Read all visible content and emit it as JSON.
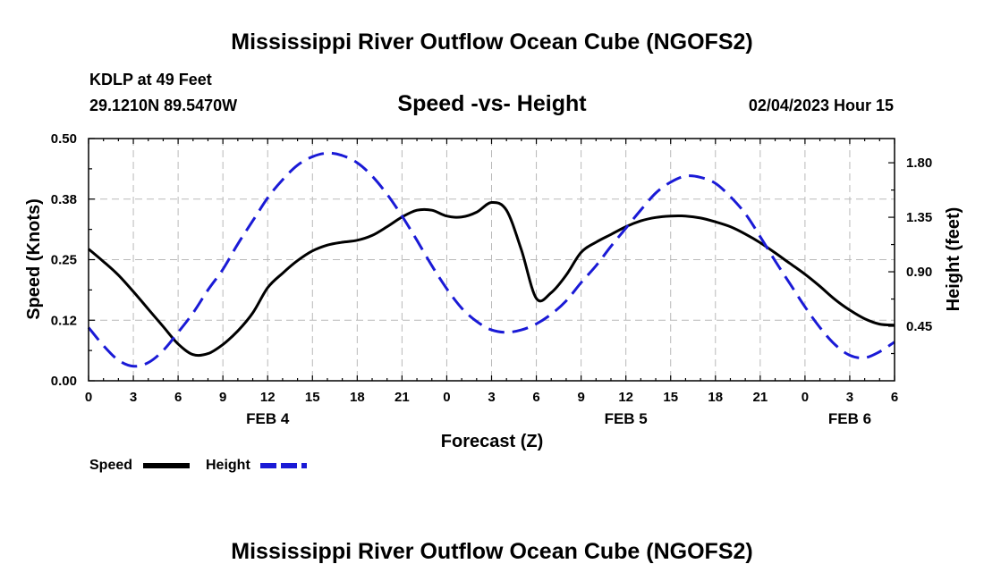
{
  "chart_data": {
    "type": "line",
    "title": "Mississippi River Outflow Ocean Cube (NGOFS2)",
    "footer_title": "Mississippi River Outflow Ocean Cube (NGOFS2)",
    "subtitle": "Speed -vs- Height",
    "station": "KDLP at 49 Feet",
    "location": "29.1210N  89.5470W",
    "datetime": "02/04/2023 Hour 15",
    "xlabel": "Forecast (Z)",
    "ylabel_left": "Speed (Knots)",
    "ylabel_right": "Height (feet)",
    "xlim": [
      0,
      54
    ],
    "ylim_left": [
      0,
      0.5
    ],
    "ylim_right": [
      0,
      2.0
    ],
    "x_ticks": [
      0,
      3,
      6,
      9,
      12,
      15,
      18,
      21,
      24,
      27,
      30,
      33,
      36,
      39,
      42,
      45,
      48,
      51,
      54
    ],
    "x_tick_labels": [
      "0",
      "3",
      "6",
      "9",
      "12",
      "15",
      "18",
      "21",
      "0",
      "3",
      "6",
      "9",
      "12",
      "15",
      "18",
      "21",
      "0",
      "3",
      "6"
    ],
    "y_ticks_left": [
      0.0,
      0.125,
      0.25,
      0.375,
      0.5
    ],
    "y_tick_labels_left": [
      "0.00",
      "0.12",
      "0.25",
      "0.38",
      "0.50"
    ],
    "y_ticks_right": [
      0.45,
      0.9,
      1.35,
      1.8
    ],
    "y_tick_labels_right": [
      "0.45",
      "0.90",
      "1.35",
      "1.80"
    ],
    "date_labels": [
      {
        "x": 12,
        "label": "FEB 4"
      },
      {
        "x": 36,
        "label": "FEB 5"
      },
      {
        "x": 51,
        "label": "FEB 6"
      }
    ],
    "series": [
      {
        "name": "Speed",
        "axis": "left",
        "color": "#000000",
        "style": "solid",
        "x": [
          0,
          1,
          2,
          3,
          4,
          5,
          6,
          7,
          8,
          9,
          10,
          11,
          12,
          13,
          14,
          15,
          16,
          17,
          18,
          19,
          20,
          21,
          22,
          23,
          24,
          25,
          26,
          27,
          28,
          29,
          30,
          31,
          32,
          33,
          34,
          35,
          36,
          37,
          38,
          39,
          40,
          41,
          42,
          43,
          44,
          45,
          46,
          47,
          48,
          49,
          50,
          51,
          52,
          53,
          54
        ],
        "values": [
          0.272,
          0.246,
          0.218,
          0.184,
          0.148,
          0.112,
          0.076,
          0.054,
          0.056,
          0.075,
          0.103,
          0.14,
          0.192,
          0.222,
          0.248,
          0.268,
          0.28,
          0.286,
          0.29,
          0.3,
          0.318,
          0.338,
          0.352,
          0.352,
          0.34,
          0.338,
          0.348,
          0.368,
          0.352,
          0.27,
          0.17,
          0.182,
          0.218,
          0.265,
          0.286,
          0.302,
          0.318,
          0.33,
          0.337,
          0.34,
          0.34,
          0.336,
          0.328,
          0.318,
          0.303,
          0.285,
          0.264,
          0.242,
          0.22,
          0.195,
          0.168,
          0.146,
          0.128,
          0.117,
          0.115
        ]
      },
      {
        "name": "Height",
        "axis": "right",
        "color": "#1a1ad6",
        "style": "dashed",
        "x": [
          0,
          1,
          2,
          3,
          4,
          5,
          6,
          7,
          8,
          9,
          10,
          11,
          12,
          13,
          14,
          15,
          16,
          17,
          18,
          19,
          20,
          21,
          22,
          23,
          24,
          25,
          26,
          27,
          28,
          29,
          30,
          31,
          32,
          33,
          34,
          35,
          36,
          37,
          38,
          39,
          40,
          41,
          42,
          43,
          44,
          45,
          46,
          47,
          48,
          49,
          50,
          51,
          52,
          53,
          54
        ],
        "values": [
          0.44,
          0.29,
          0.17,
          0.12,
          0.15,
          0.25,
          0.4,
          0.56,
          0.75,
          0.92,
          1.13,
          1.32,
          1.51,
          1.66,
          1.78,
          1.85,
          1.88,
          1.86,
          1.8,
          1.69,
          1.54,
          1.36,
          1.16,
          0.95,
          0.76,
          0.6,
          0.49,
          0.42,
          0.4,
          0.42,
          0.47,
          0.55,
          0.66,
          0.81,
          0.95,
          1.11,
          1.26,
          1.41,
          1.55,
          1.64,
          1.69,
          1.68,
          1.63,
          1.52,
          1.38,
          1.19,
          0.99,
          0.8,
          0.61,
          0.44,
          0.3,
          0.21,
          0.19,
          0.24,
          0.32
        ]
      }
    ],
    "legend": [
      {
        "label": "Speed",
        "color": "#000000",
        "style": "solid"
      },
      {
        "label": "Height",
        "color": "#1a1ad6",
        "style": "dashed"
      }
    ]
  }
}
